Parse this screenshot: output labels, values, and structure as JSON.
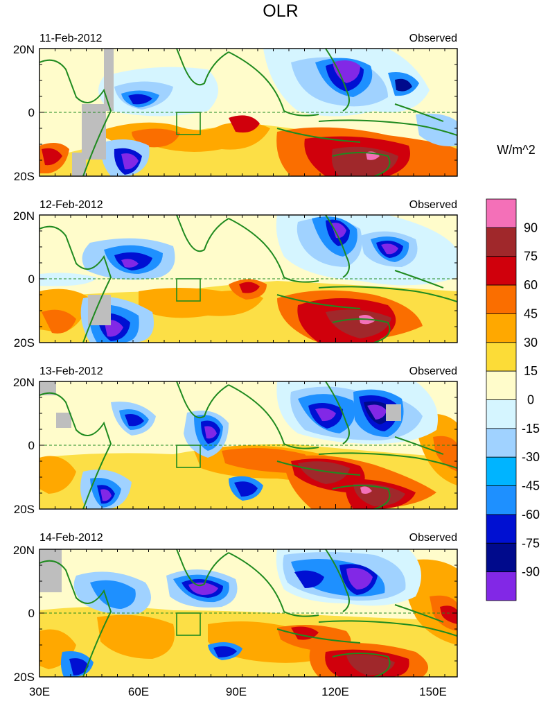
{
  "title": "OLR",
  "units": "W/m^2",
  "panel_right_label": "Observed",
  "panels": [
    {
      "date": "11-Feb-2012"
    },
    {
      "date": "12-Feb-2012"
    },
    {
      "date": "13-Feb-2012"
    },
    {
      "date": "14-Feb-2012"
    }
  ],
  "lat_labels": [
    "20N",
    "0",
    "20S"
  ],
  "lon_labels": [
    "30E",
    "60E",
    "90E",
    "120E",
    "150E"
  ],
  "colorbar": {
    "labels": [
      "90",
      "75",
      "60",
      "45",
      "30",
      "15",
      "0",
      "-15",
      "-30",
      "-45",
      "-60",
      "-75",
      "-90"
    ],
    "colors": [
      "#f470b8",
      "#a0282b",
      "#d0000c",
      "#fa6e00",
      "#ffa800",
      "#fcdc37",
      "#fffccb",
      "#d5f5ff",
      "#a0d2ff",
      "#00b4ff",
      "#1e90ff",
      "#0010d2",
      "#000a8c",
      "#8228e6"
    ]
  },
  "colors": {
    "coast": "#1f8a1f",
    "missing": "#bebebe"
  }
}
